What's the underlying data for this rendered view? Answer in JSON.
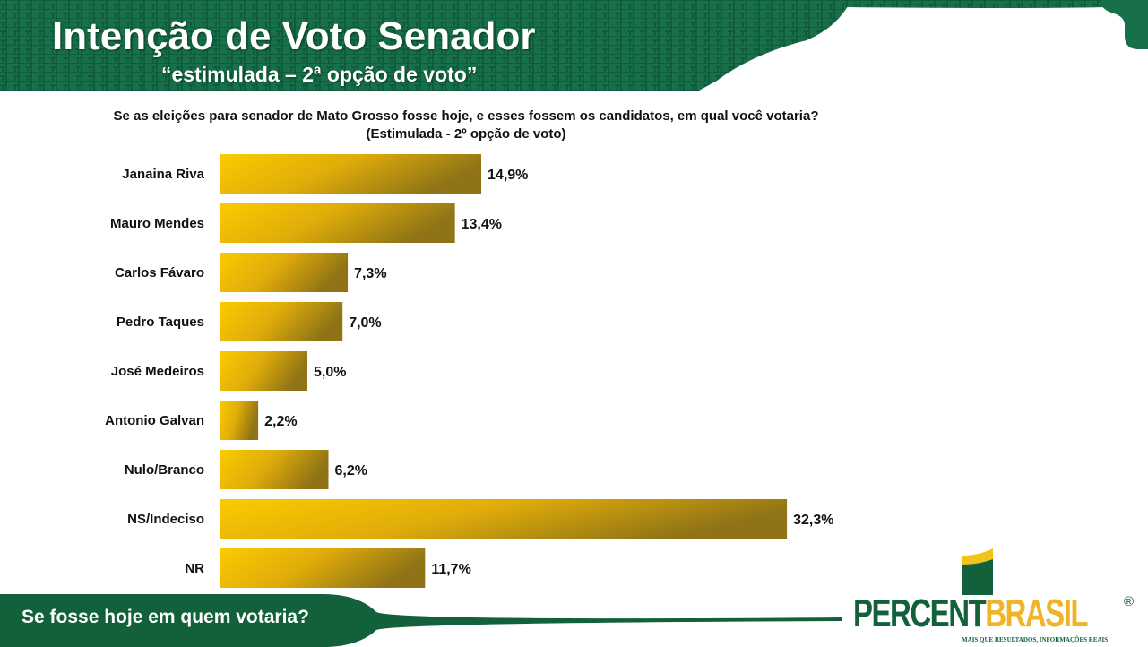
{
  "header": {
    "title": "Intenção de Voto Senador",
    "subtitle": "“estimulada – 2ª opção de voto”"
  },
  "colors": {
    "green": "#13613a",
    "bar_light": "#f9c800",
    "bar_dark": "#9a7a12"
  },
  "footer": {
    "text": "Se fosse hoje em quem votaria?"
  },
  "logo": {
    "part1": "PERCENT",
    "part2": "BRASIL",
    "registered": "®",
    "tagline": "MAIS QUE RESULTADOS, INFORMAÇÕES REAIS"
  },
  "chart_data": {
    "type": "bar",
    "orientation": "horizontal",
    "title": "Se as eleições para senador de Mato Grosso fosse hoje, e esses fossem os candidatos, em qual você votaria? (Estimulada - 2º opção de voto)",
    "categories": [
      "Janaina Riva",
      "Mauro Mendes",
      "Carlos Fávaro",
      "Pedro Taques",
      "José Medeiros",
      "Antonio Galvan",
      "Nulo/Branco",
      "NS/Indeciso",
      "NR"
    ],
    "values": [
      14.9,
      13.4,
      7.3,
      7.0,
      5.0,
      2.2,
      6.2,
      32.3,
      11.7
    ],
    "labels": [
      "14,9%",
      "13,4%",
      "7,3%",
      "7,0%",
      "5,0%",
      "2,2%",
      "6,2%",
      "32,3%",
      "11,7%"
    ],
    "unit": "%",
    "grid": false
  }
}
